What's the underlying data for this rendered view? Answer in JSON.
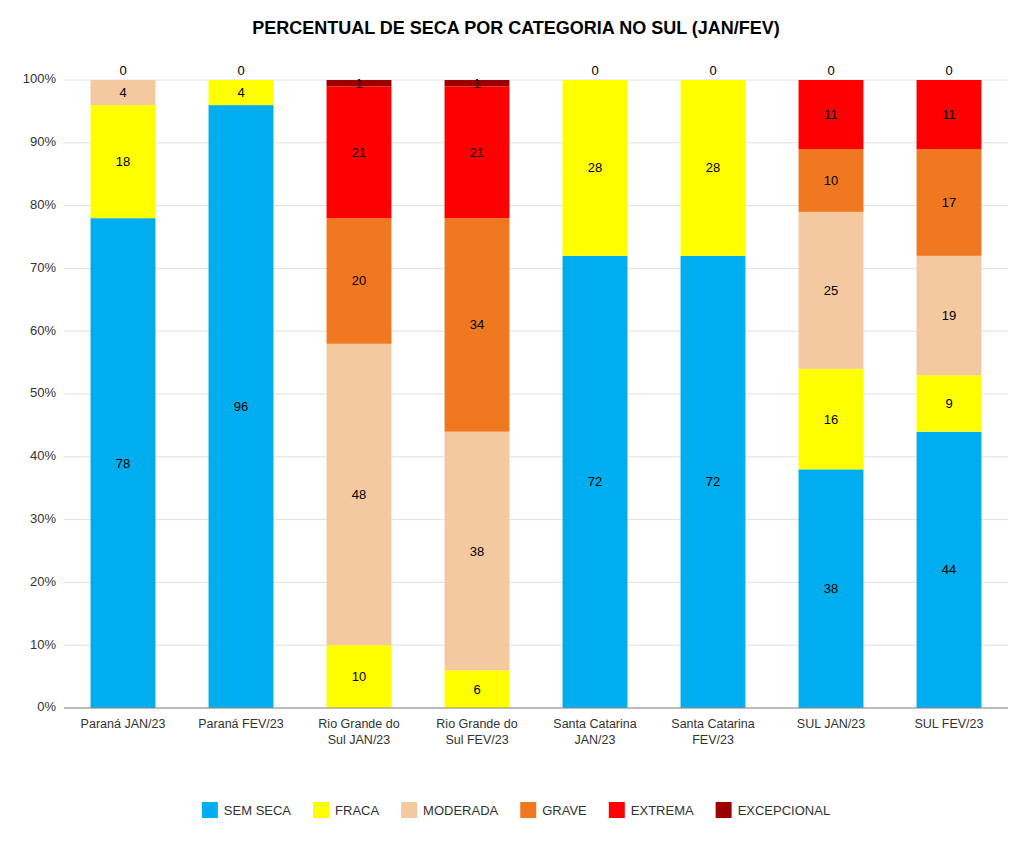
{
  "chart_data": {
    "type": "bar",
    "stacked": true,
    "data_labels": true,
    "grid": true,
    "legend": "bottom",
    "title": "PERCENTUAL DE SECA POR CATEGORIA NO SUL (JAN/FEV)",
    "categories": [
      "Paraná JAN/23",
      "Paraná FEV/23",
      "Rio Grande do\nSul JAN/23",
      "Rio Grande do\nSul FEV/23",
      "Santa Catarina\nJAN/23",
      "Santa Catarina\nFEV/23",
      "SUL JAN/23",
      "SUL FEV/23"
    ],
    "series": [
      {
        "name": "SEM SECA",
        "color": "#00AEEF",
        "values": [
          78,
          96,
          0,
          0,
          72,
          72,
          38,
          44
        ]
      },
      {
        "name": "FRACA",
        "color": "#FFFF00",
        "values": [
          18,
          4,
          10,
          6,
          28,
          28,
          16,
          9
        ]
      },
      {
        "name": "MODERADA",
        "color": "#F5C9A0",
        "values": [
          4,
          0,
          48,
          38,
          0,
          0,
          25,
          19
        ]
      },
      {
        "name": "GRAVE",
        "color": "#F07820",
        "values": [
          0,
          0,
          20,
          34,
          0,
          0,
          10,
          17
        ]
      },
      {
        "name": "EXTREMA",
        "color": "#FF0000",
        "values": [
          0,
          0,
          21,
          21,
          0,
          0,
          11,
          11
        ]
      },
      {
        "name": "EXCEPCIONAL",
        "color": "#9B0000",
        "values": [
          0,
          0,
          1,
          1,
          0,
          0,
          0,
          0
        ]
      }
    ],
    "ylim": [
      0,
      100
    ],
    "yticks": [
      {
        "value": 0,
        "label": "0%"
      },
      {
        "value": 10,
        "label": "10%"
      },
      {
        "value": 20,
        "label": "20%"
      },
      {
        "value": 30,
        "label": "30%"
      },
      {
        "value": 40,
        "label": "40%"
      },
      {
        "value": 50,
        "label": "50%"
      },
      {
        "value": 60,
        "label": "60%"
      },
      {
        "value": 70,
        "label": "70%"
      },
      {
        "value": 80,
        "label": "80%"
      },
      {
        "value": 90,
        "label": "90%"
      },
      {
        "value": 100,
        "label": "100%"
      }
    ]
  }
}
